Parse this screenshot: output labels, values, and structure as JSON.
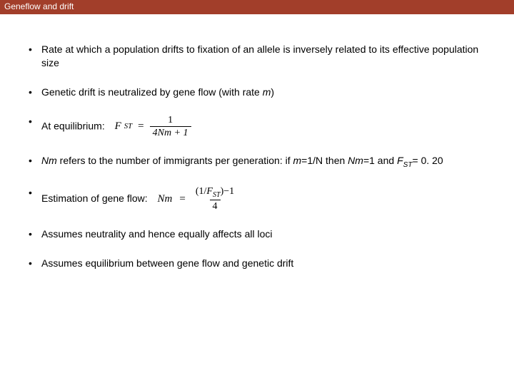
{
  "title_bar": {
    "text": "Geneflow and drift",
    "background_color": "#a23e2a",
    "text_color": "#ffffff",
    "font_size": 12
  },
  "body": {
    "background_color": "#ffffff",
    "text_color": "#000000",
    "bullet_font_size": 14
  },
  "bullets": [
    {
      "html": "Rate at which a population drifts to fixation of an allele is inversely related to its effective population size"
    },
    {
      "html": "Genetic drift is neutralized by gene flow (with rate <span class='ital'>m</span>)"
    },
    {
      "html": "At equilibrium:",
      "formula": "fst"
    },
    {
      "html": "<span class='ital'>Nm</span> refers to the number of immigrants per generation: if <span class='ital'>m</span>=1/N then <span class='ital'>Nm</span>=1 and <span class='ital'>F</span><span class='sub'>ST</span>= 0. 20"
    },
    {
      "html": "Estimation of gene flow:",
      "formula": "nm"
    },
    {
      "html": "Assumes neutrality and hence equally affects all loci"
    },
    {
      "html": "Assumes equilibrium between gene flow and genetic drift"
    }
  ],
  "formulas": {
    "fst": {
      "lhs": "F",
      "lhs_sub": "ST",
      "eq": "=",
      "numerator": "1",
      "denominator": "4Nm + 1"
    },
    "nm": {
      "lhs": "Nm",
      "eq": "=",
      "numerator_html": "(1/<span class='ital'>F</span><span class='sub' style='font-style:italic'>ST</span>)−1",
      "denominator": "4"
    }
  }
}
